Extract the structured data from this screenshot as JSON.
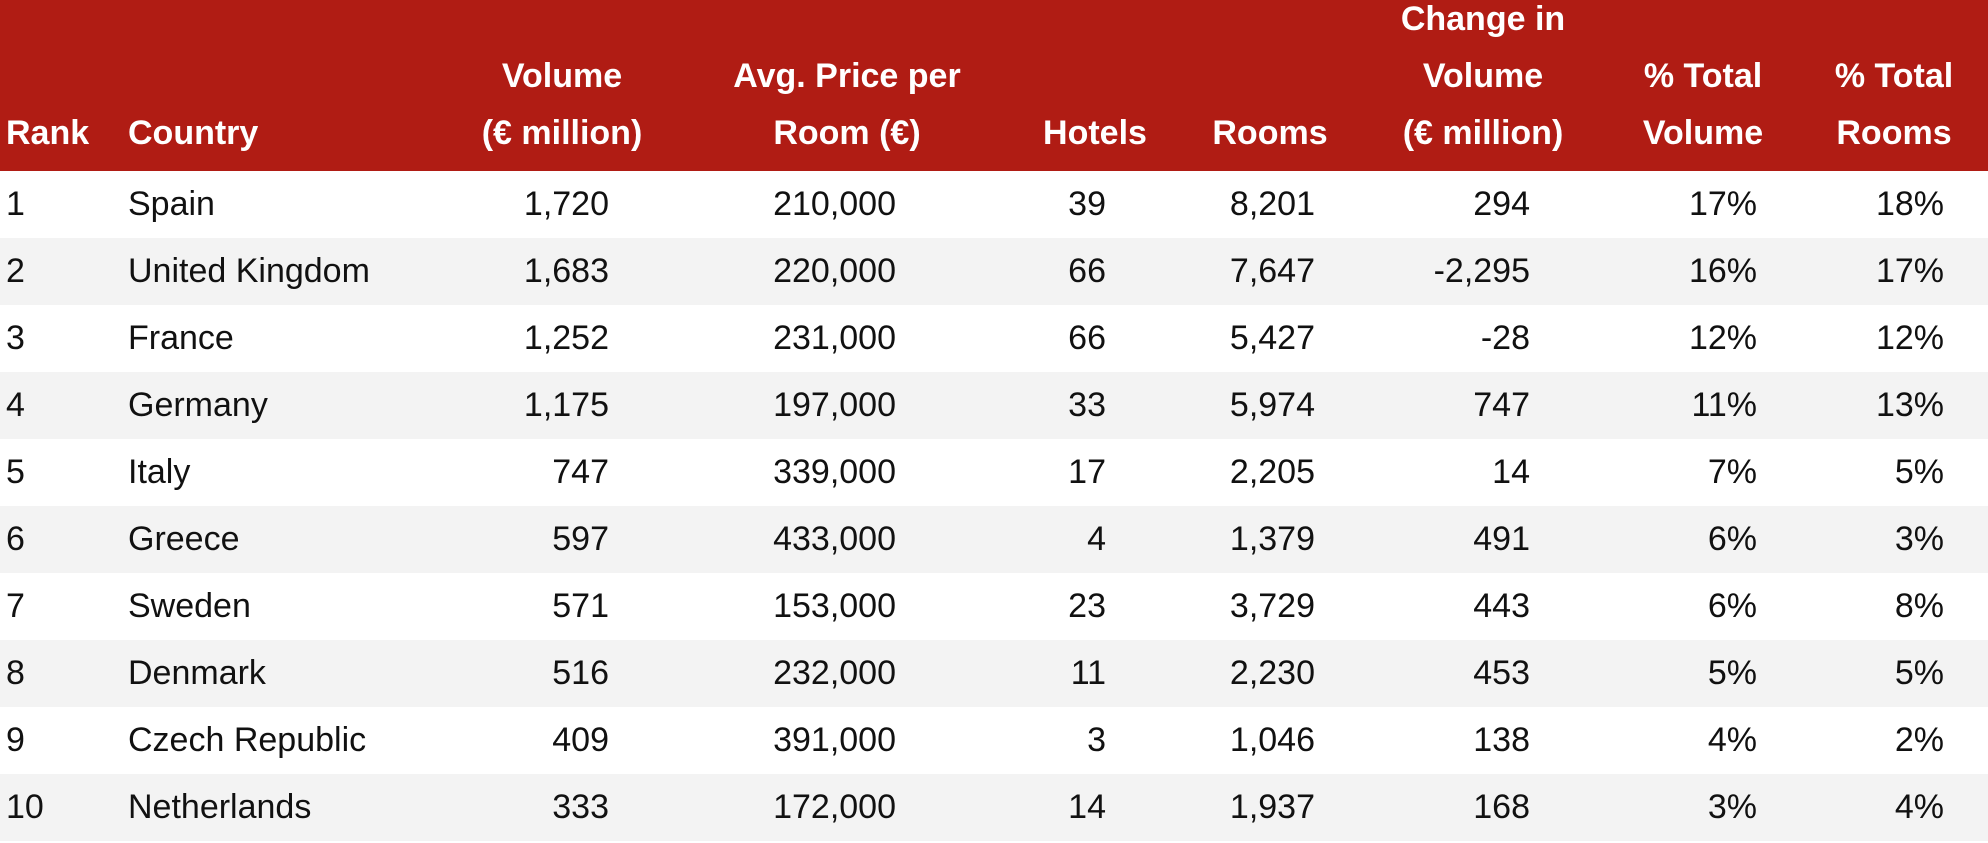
{
  "table": {
    "header": [
      [
        "Rank"
      ],
      [
        "Country"
      ],
      [
        "Volume",
        "(€ million)"
      ],
      [
        "Avg. Price per",
        "Room (€)"
      ],
      [
        "Hotels"
      ],
      [
        "Rooms"
      ],
      [
        "Change in",
        "Volume",
        "(€ million)"
      ],
      [
        "% Total",
        "Volume"
      ],
      [
        "% Total",
        "Rooms"
      ]
    ],
    "rows": [
      [
        "1",
        "Spain",
        "1,720",
        "210,000",
        "39",
        "8,201",
        "294",
        "17%",
        "18%"
      ],
      [
        "2",
        "United Kingdom",
        "1,683",
        "220,000",
        "66",
        "7,647",
        "-2,295",
        "16%",
        "17%"
      ],
      [
        "3",
        "France",
        "1,252",
        "231,000",
        "66",
        "5,427",
        "-28",
        "12%",
        "12%"
      ],
      [
        "4",
        "Germany",
        "1,175",
        "197,000",
        "33",
        "5,974",
        "747",
        "11%",
        "13%"
      ],
      [
        "5",
        "Italy",
        "747",
        "339,000",
        "17",
        "2,205",
        "14",
        "7%",
        "5%"
      ],
      [
        "6",
        "Greece",
        "597",
        "433,000",
        "4",
        "1,379",
        "491",
        "6%",
        "3%"
      ],
      [
        "7",
        "Sweden",
        "571",
        "153,000",
        "23",
        "3,729",
        "443",
        "6%",
        "8%"
      ],
      [
        "8",
        "Denmark",
        "516",
        "232,000",
        "11",
        "2,230",
        "453",
        "5%",
        "5%"
      ],
      [
        "9",
        "Czech Republic",
        "409",
        "391,000",
        "3",
        "1,046",
        "138",
        "4%",
        "2%"
      ],
      [
        "10",
        "Netherlands",
        "333",
        "172,000",
        "14",
        "1,937",
        "168",
        "3%",
        "4%"
      ]
    ]
  }
}
